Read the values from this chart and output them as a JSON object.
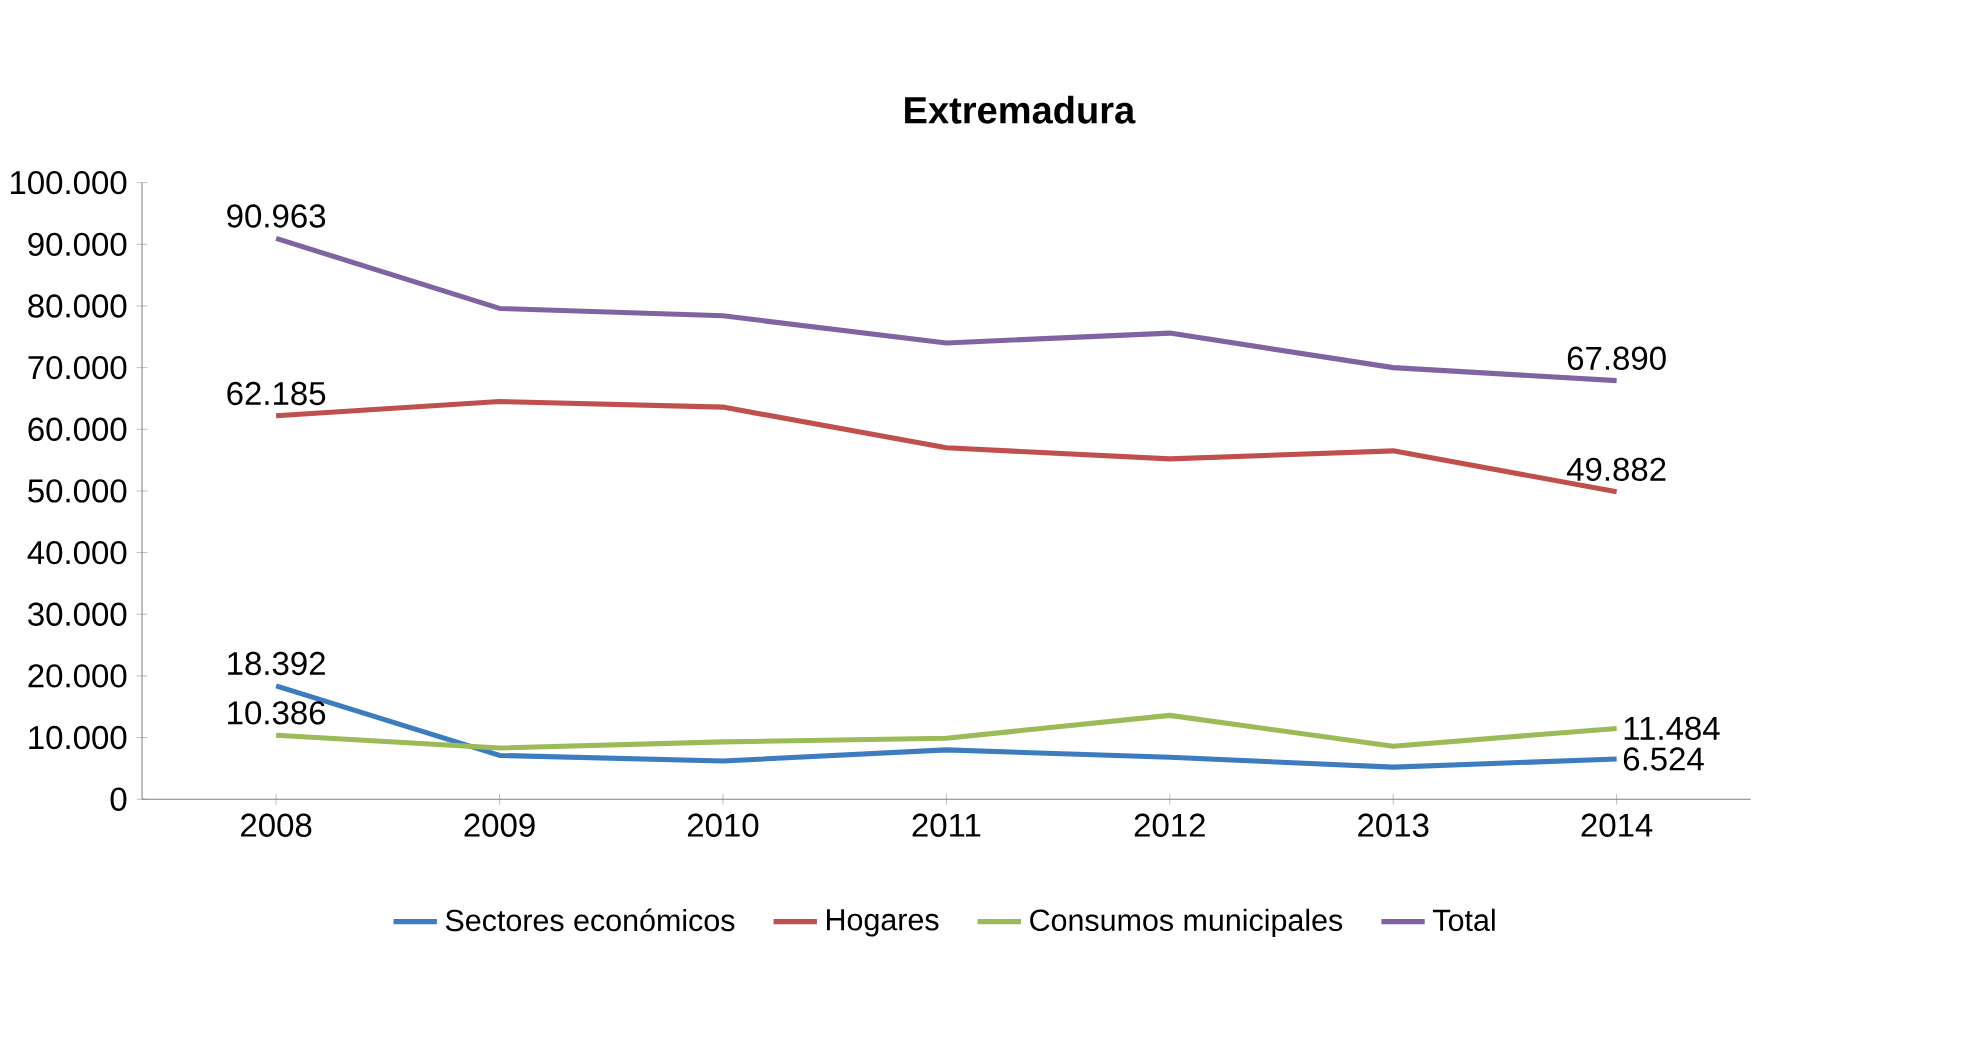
{
  "chart_data": {
    "type": "line",
    "title": "Extremadura",
    "categories": [
      "2008",
      "2009",
      "2010",
      "2011",
      "2012",
      "2013",
      "2014"
    ],
    "series": [
      {
        "name": "Sectores económicos",
        "color": "#3e7cc0",
        "values": [
          18392,
          7100,
          6200,
          8000,
          6800,
          5200,
          6524
        ],
        "value_labels": [
          "18.392",
          null,
          null,
          null,
          null,
          null,
          "6.524"
        ]
      },
      {
        "name": "Hogares",
        "color": "#c0504d",
        "values": [
          62185,
          64500,
          63600,
          57000,
          55200,
          56500,
          49882
        ],
        "value_labels": [
          "62.185",
          null,
          null,
          null,
          null,
          null,
          "49.882"
        ]
      },
      {
        "name": "Consumos municipales",
        "color": "#9bbb59",
        "values": [
          10386,
          8300,
          9300,
          9900,
          13600,
          8600,
          11484
        ],
        "value_labels": [
          "10.386",
          null,
          null,
          null,
          null,
          null,
          "11.484"
        ]
      },
      {
        "name": "Total",
        "color": "#8064a2",
        "values": [
          90963,
          79600,
          78400,
          74000,
          75600,
          70000,
          67890
        ],
        "value_labels": [
          "90.963",
          null,
          null,
          null,
          null,
          null,
          "67.890"
        ]
      }
    ],
    "ylim": [
      0,
      100000
    ],
    "yticks": [
      {
        "value": 0,
        "label": "0"
      },
      {
        "value": 10000,
        "label": "10.000"
      },
      {
        "value": 20000,
        "label": "20.000"
      },
      {
        "value": 30000,
        "label": "30.000"
      },
      {
        "value": 40000,
        "label": "40.000"
      },
      {
        "value": 50000,
        "label": "50.000"
      },
      {
        "value": 60000,
        "label": "60.000"
      },
      {
        "value": 70000,
        "label": "70.000"
      },
      {
        "value": 80000,
        "label": "80.000"
      },
      {
        "value": 90000,
        "label": "90.000"
      },
      {
        "value": 100000,
        "label": "100.000"
      }
    ],
    "grid": false,
    "legend": "bottom",
    "marker": "none",
    "line_style": "solid"
  }
}
